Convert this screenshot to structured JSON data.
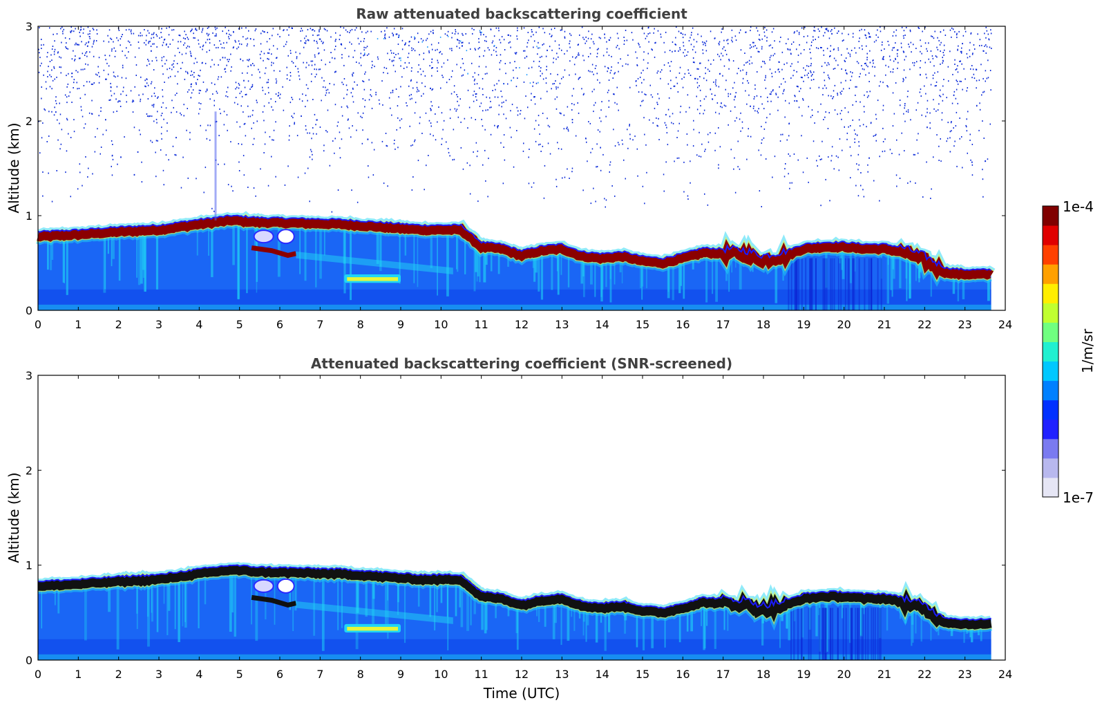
{
  "chart_data": [
    {
      "type": "heatmap",
      "title": "Raw attenuated backscattering coefficient",
      "xlabel": "",
      "ylabel": "Altitude (km)",
      "xlim": [
        0,
        24
      ],
      "ylim": [
        0,
        3
      ],
      "x_ticks": [
        0,
        1,
        2,
        3,
        4,
        5,
        6,
        7,
        8,
        9,
        10,
        11,
        12,
        13,
        14,
        15,
        16,
        17,
        18,
        19,
        20,
        21,
        22,
        23,
        24
      ],
      "y_ticks": [
        0,
        1,
        2,
        3
      ],
      "data_end_time": 23.65,
      "layer_top_km": [
        [
          0,
          0.83
        ],
        [
          1,
          0.85
        ],
        [
          2,
          0.88
        ],
        [
          3,
          0.9
        ],
        [
          4,
          0.96
        ],
        [
          4.8,
          1.0
        ],
        [
          5.5,
          0.98
        ],
        [
          6.5,
          0.97
        ],
        [
          7.5,
          0.96
        ],
        [
          8.5,
          0.93
        ],
        [
          9.5,
          0.9
        ],
        [
          10.5,
          0.9
        ],
        [
          11,
          0.72
        ],
        [
          11.5,
          0.7
        ],
        [
          12,
          0.63
        ],
        [
          12.5,
          0.68
        ],
        [
          13,
          0.7
        ],
        [
          13.5,
          0.62
        ],
        [
          14,
          0.6
        ],
        [
          14.5,
          0.62
        ],
        [
          15,
          0.57
        ],
        [
          15.5,
          0.55
        ],
        [
          16,
          0.6
        ],
        [
          16.5,
          0.66
        ],
        [
          17,
          0.65
        ],
        [
          17.5,
          0.64
        ],
        [
          18,
          0.58
        ],
        [
          18.5,
          0.62
        ],
        [
          19,
          0.7
        ],
        [
          19.5,
          0.72
        ],
        [
          20,
          0.72
        ],
        [
          20.5,
          0.7
        ],
        [
          21,
          0.7
        ],
        [
          21.5,
          0.66
        ],
        [
          22,
          0.58
        ],
        [
          22.5,
          0.45
        ],
        [
          23,
          0.43
        ],
        [
          23.65,
          0.43
        ]
      ],
      "lofted_layer": {
        "start": 7.6,
        "end": 9.0,
        "altitude_km": 0.32
      },
      "noise": "above boundary layer"
    },
    {
      "type": "heatmap",
      "title": "Attenuated backscattering coefficient (SNR-screened)",
      "xlabel": "Time (UTC)",
      "ylabel": "Altitude (km)",
      "xlim": [
        0,
        24
      ],
      "ylim": [
        0,
        3
      ],
      "x_ticks": [
        0,
        1,
        2,
        3,
        4,
        5,
        6,
        7,
        8,
        9,
        10,
        11,
        12,
        13,
        14,
        15,
        16,
        17,
        18,
        19,
        20,
        21,
        22,
        23,
        24
      ],
      "y_ticks": [
        0,
        1,
        2,
        3
      ],
      "data_end_time": 23.65,
      "screened": true
    }
  ],
  "colorbar": {
    "label": "1/m/sr",
    "max_label": "1e-4",
    "min_label": "1e-7",
    "colormap": [
      "#e6e6f5",
      "#b8b8ee",
      "#7a7af0",
      "#2020ff",
      "#0030ff",
      "#0080ff",
      "#00c8ff",
      "#20f0d0",
      "#70ff80",
      "#c0ff30",
      "#ffee00",
      "#ffa000",
      "#ff4000",
      "#e00000",
      "#800000"
    ]
  },
  "colors": {
    "noise": "#0a2ad8",
    "bl_base": "#1a66f5",
    "bl_deep": "#0d3fe8",
    "layer_top_raw": "#8b0000",
    "layer_top_screened": "#111111",
    "cyan": "#1fd6f5",
    "yellow": "#e6f53a"
  }
}
